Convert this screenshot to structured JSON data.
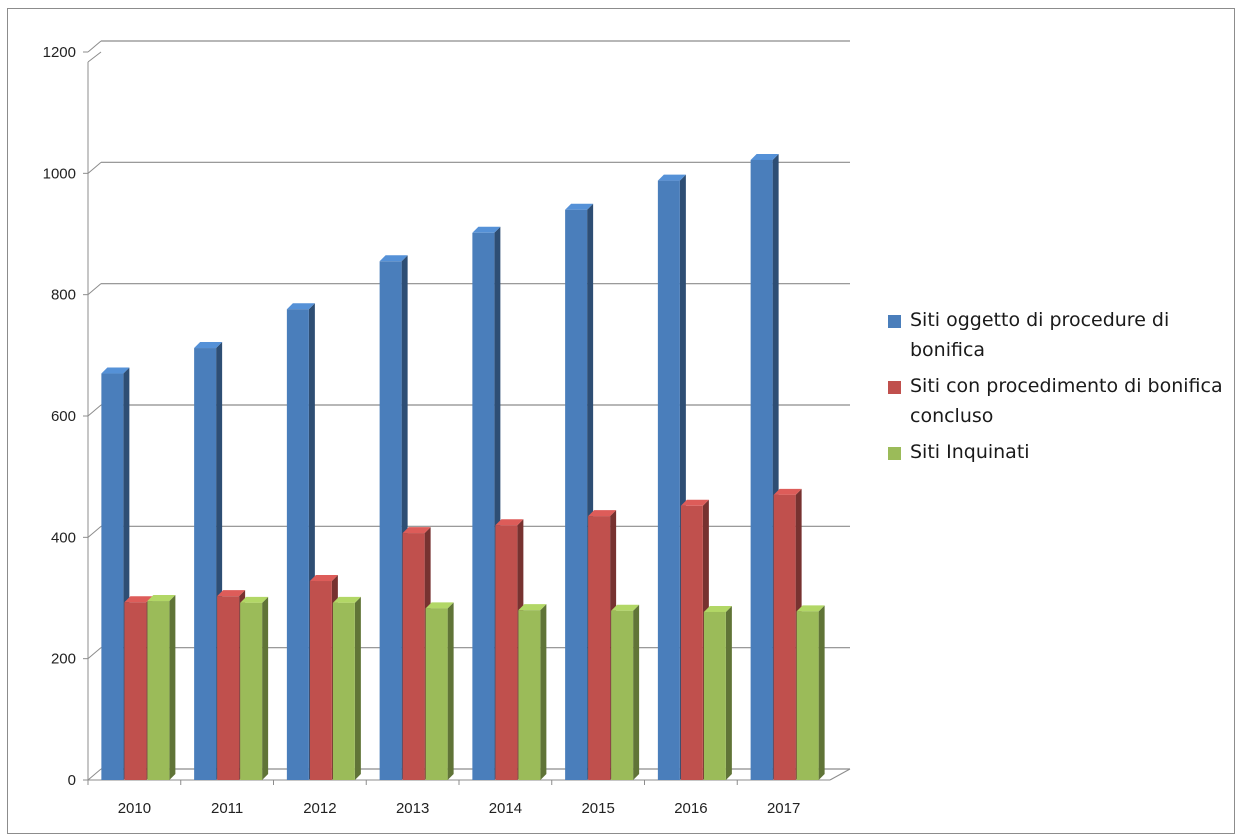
{
  "chart_data": {
    "type": "bar",
    "style": "3d-clustered-column",
    "categories": [
      "2010",
      "2011",
      "2012",
      "2013",
      "2014",
      "2015",
      "2016",
      "2017"
    ],
    "series": [
      {
        "name": "Siti oggetto di procedure di bonifica",
        "color": "#4a7ebb",
        "values": [
          670,
          712,
          776,
          855,
          902,
          940,
          988,
          1022
        ]
      },
      {
        "name": "Siti con procedimento di bonifica concluso",
        "color": "#c0504d",
        "values": [
          293,
          303,
          328,
          407,
          420,
          435,
          452,
          470
        ]
      },
      {
        "name": "Siti Inquinati",
        "color": "#9bbb59",
        "values": [
          295,
          292,
          292,
          283,
          280,
          279,
          277,
          278
        ]
      }
    ],
    "yticks": [
      "0",
      "200",
      "400",
      "600",
      "800",
      "1000",
      "1200"
    ],
    "ylim": [
      0,
      1200
    ],
    "grid": true,
    "legend_position": "right"
  }
}
